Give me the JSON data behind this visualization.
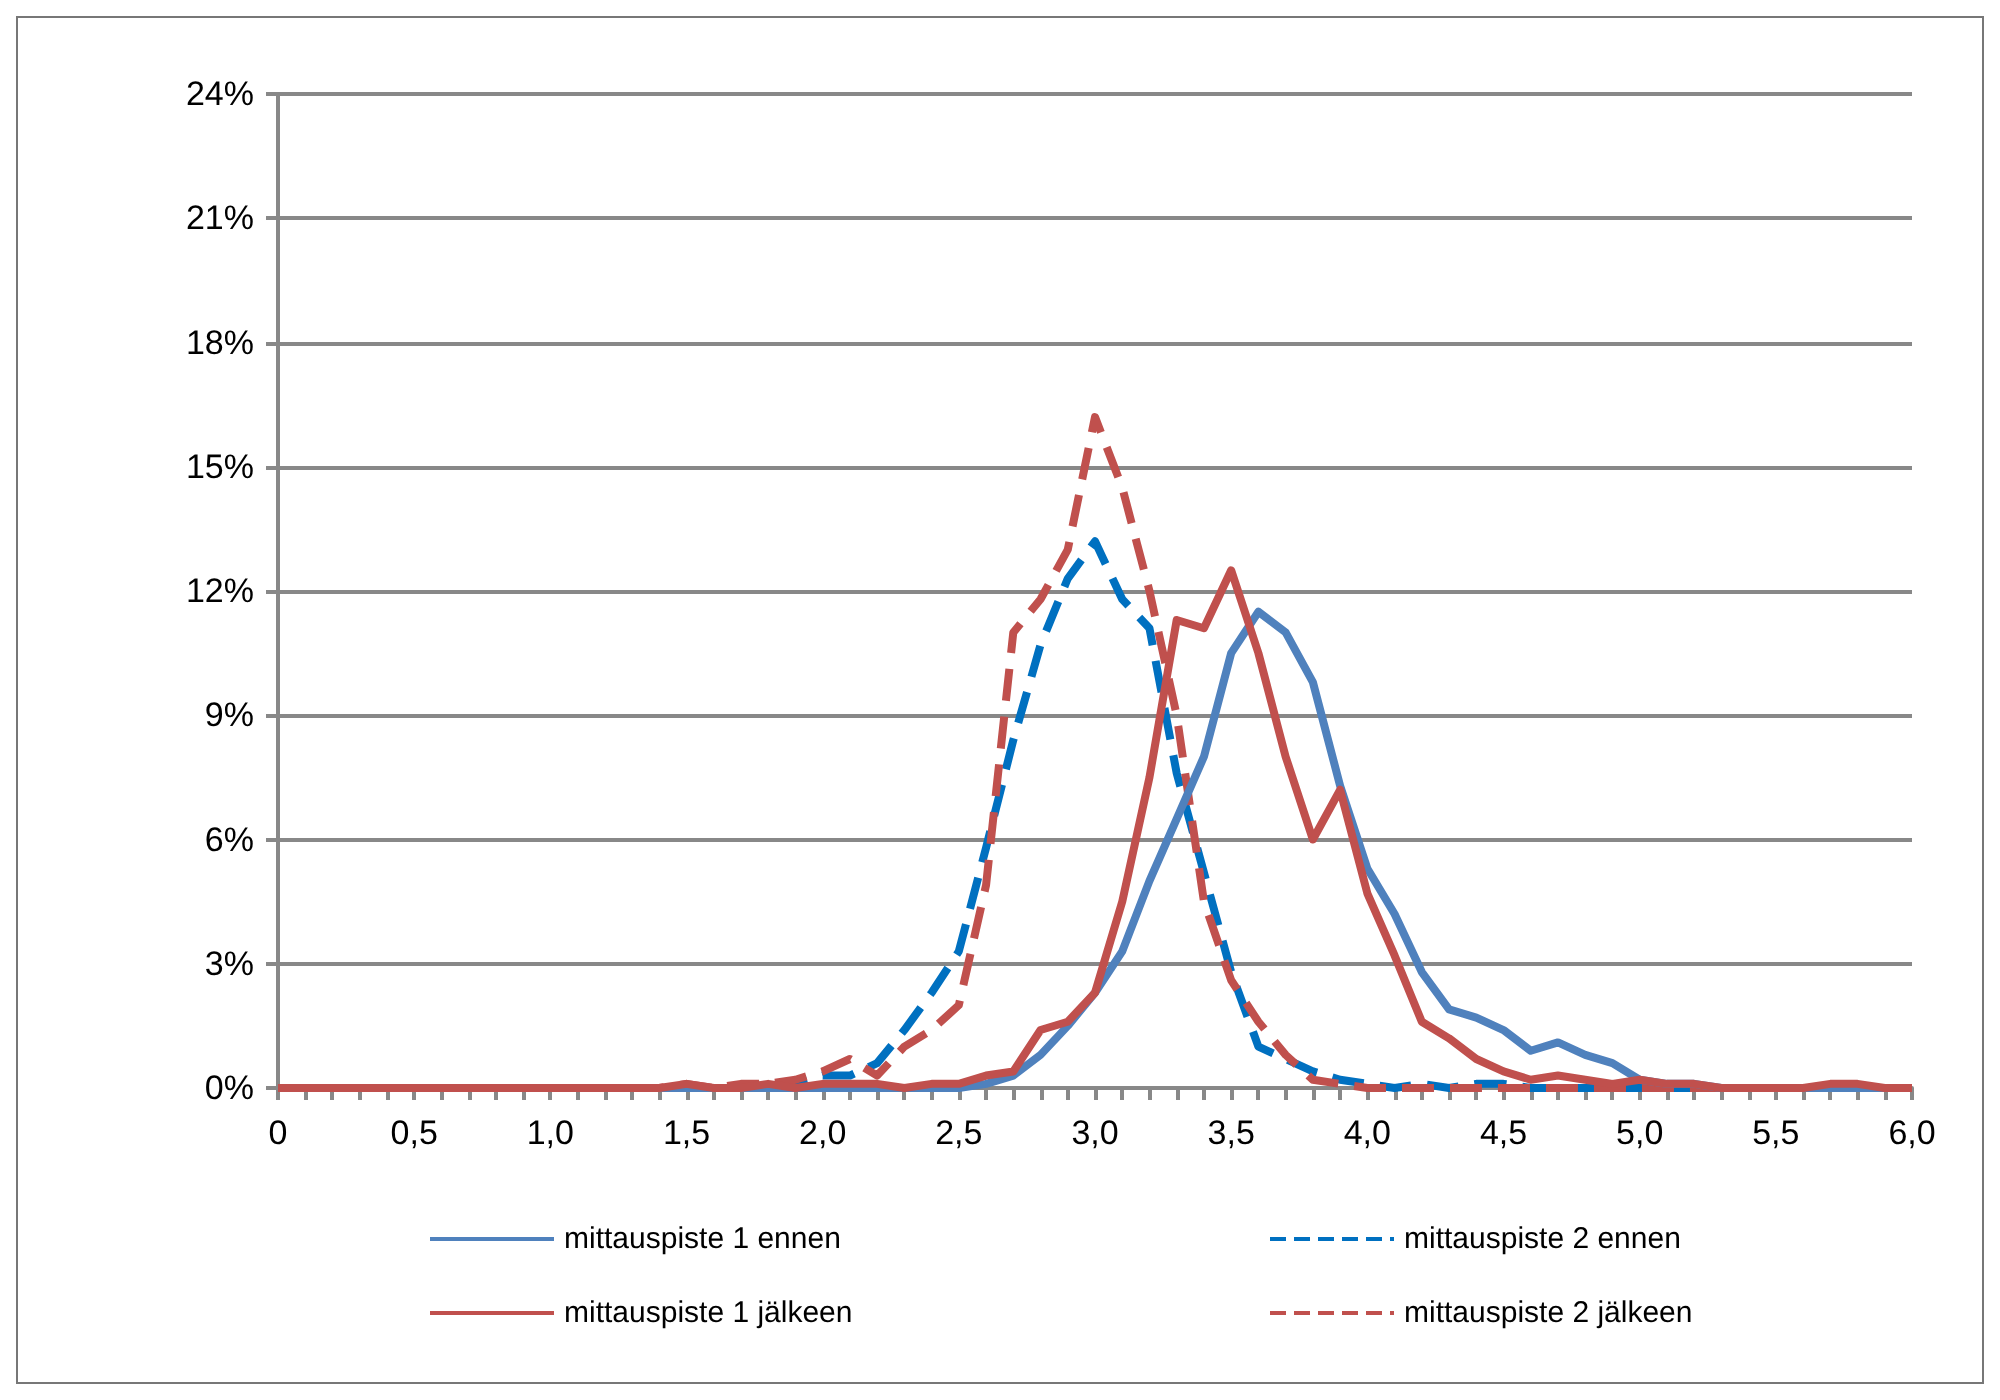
{
  "chart_data": {
    "type": "line",
    "categories": [
      "0",
      null,
      null,
      null,
      null,
      "0,5",
      null,
      null,
      null,
      null,
      "1,0",
      null,
      null,
      null,
      null,
      "1,5",
      null,
      null,
      null,
      null,
      "2,0",
      null,
      null,
      null,
      null,
      "2,5",
      null,
      null,
      null,
      null,
      "3,0",
      null,
      null,
      null,
      null,
      "3,5",
      null,
      null,
      null,
      null,
      "4,0",
      null,
      null,
      null,
      null,
      "4,5",
      null,
      null,
      null,
      null,
      "5,0",
      null,
      null,
      null,
      null,
      "5,5",
      null,
      null,
      null,
      null,
      "6,0"
    ],
    "series": [
      {
        "name": "mittauspiste 1 ennen",
        "color": "#4f81bd",
        "line_style": "solid",
        "values": [
          null,
          null,
          null,
          null,
          null,
          null,
          null,
          null,
          null,
          null,
          null,
          null,
          null,
          0,
          0,
          0,
          0,
          0,
          0,
          0,
          0,
          0,
          0,
          0,
          0,
          0,
          0.1,
          0.3,
          0.8,
          1.5,
          2.3,
          3.3,
          5.0,
          6.5,
          8.0,
          10.5,
          11.5,
          11.0,
          9.8,
          7.3,
          5.3,
          4.2,
          2.8,
          1.9,
          1.7,
          1.4,
          0.9,
          1.1,
          0.8,
          0.6,
          0.2,
          0.1,
          0.1,
          0,
          0,
          0,
          0,
          0,
          0,
          0,
          0
        ]
      },
      {
        "name": "mittauspiste 2 ennen",
        "color": "#0070c0",
        "line_style": "dashed",
        "values": [
          null,
          null,
          null,
          null,
          null,
          null,
          null,
          null,
          null,
          null,
          null,
          null,
          null,
          0,
          0,
          0,
          0,
          0,
          0.1,
          0.1,
          0.3,
          0.3,
          0.6,
          1.4,
          2.3,
          3.3,
          5.8,
          8.4,
          10.7,
          12.3,
          13.2,
          11.8,
          11.1,
          7.6,
          5.2,
          2.8,
          1.0,
          0.7,
          0.4,
          0.2,
          0.1,
          0,
          0.1,
          0,
          0.1,
          0.1,
          0,
          0,
          0,
          0,
          0,
          0,
          0,
          0,
          0,
          0,
          0,
          0,
          0,
          0,
          0
        ]
      },
      {
        "name": "mittauspiste 1 jälkeen",
        "color": "#c0504d",
        "line_style": "solid",
        "values": [
          0,
          0,
          0,
          0,
          0,
          0,
          0,
          0,
          0,
          0,
          0,
          0,
          0,
          0,
          0,
          0.1,
          0,
          0,
          0.1,
          0,
          0.1,
          0.1,
          0.1,
          0,
          0.1,
          0.1,
          0.3,
          0.4,
          1.4,
          1.6,
          2.3,
          4.5,
          7.5,
          11.3,
          11.1,
          12.5,
          10.5,
          8.0,
          6.0,
          7.2,
          4.7,
          3.2,
          1.6,
          1.2,
          0.7,
          0.4,
          0.2,
          0.3,
          0.2,
          0.1,
          0.2,
          0.1,
          0.1,
          0,
          0,
          0,
          0,
          0.1,
          0.1,
          0,
          0
        ]
      },
      {
        "name": "mittauspiste 2 jälkeen",
        "color": "#c0504d",
        "line_style": "dashed",
        "values": [
          null,
          null,
          null,
          null,
          null,
          null,
          null,
          null,
          null,
          null,
          null,
          null,
          null,
          0,
          0,
          0.1,
          0,
          0.1,
          0.1,
          0.2,
          0.4,
          0.7,
          0.3,
          1.0,
          1.4,
          2.0,
          4.9,
          11.0,
          11.8,
          13.0,
          16.2,
          14.5,
          12.0,
          9.0,
          4.5,
          2.6,
          1.6,
          0.8,
          0.2,
          0.1,
          0,
          0,
          0,
          0,
          0,
          0,
          0,
          0,
          0,
          0,
          0,
          0,
          0,
          0,
          0,
          0,
          0,
          0,
          0,
          0,
          0
        ]
      }
    ],
    "ylim": [
      0,
      24
    ],
    "yticks": [
      {
        "value": 0,
        "label": "0%"
      },
      {
        "value": 3,
        "label": "3%"
      },
      {
        "value": 6,
        "label": "6%"
      },
      {
        "value": 9,
        "label": "9%"
      },
      {
        "value": 12,
        "label": "12%"
      },
      {
        "value": 15,
        "label": "15%"
      },
      {
        "value": 18,
        "label": "18%"
      },
      {
        "value": 21,
        "label": "21%"
      },
      {
        "value": 24,
        "label": "24%"
      }
    ],
    "grid": "y",
    "legend": "bottom",
    "marker": "none"
  }
}
